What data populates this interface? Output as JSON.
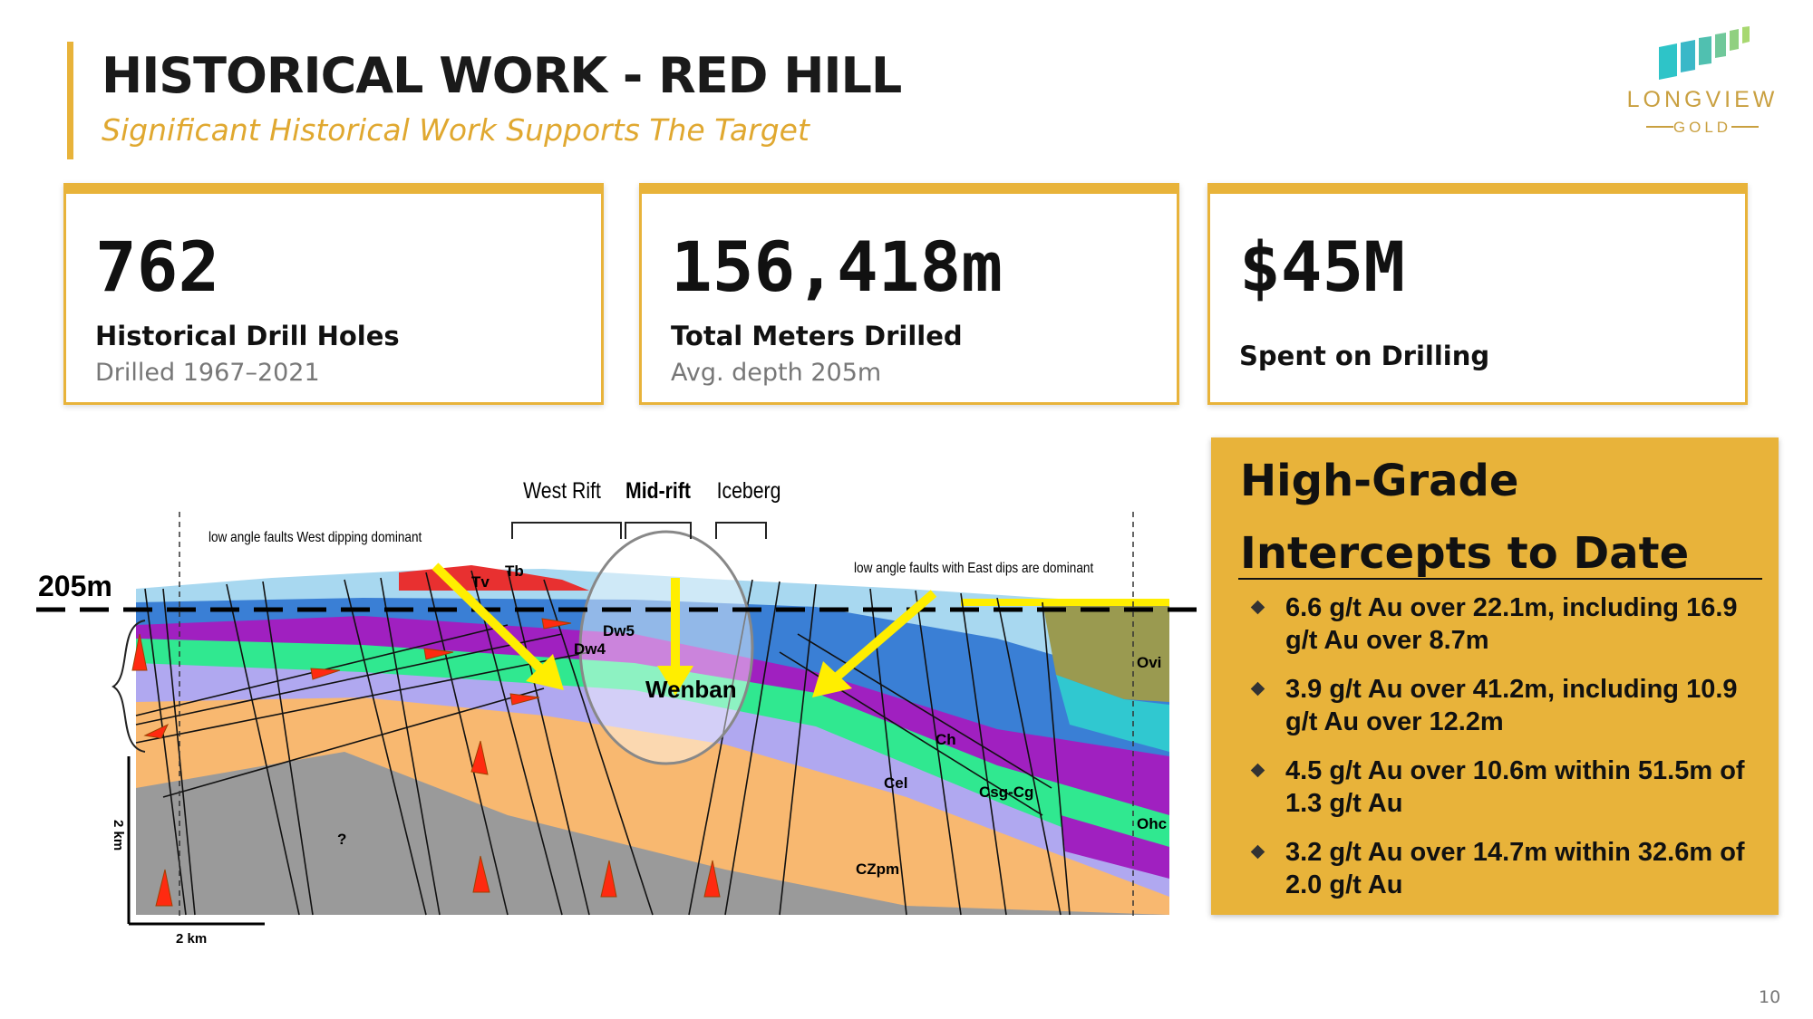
{
  "header": {
    "title": "HISTORICAL WORK - RED HILL",
    "subtitle": "Significant Historical Work Supports The Target"
  },
  "logo": {
    "name": "LONGVIEW",
    "tagline": "GOLD"
  },
  "stats": [
    {
      "value": "762",
      "label": "Historical Drill Holes",
      "note": "Drilled 1967–2021"
    },
    {
      "value": "156,418m",
      "label": "Total Meters Drilled",
      "note": "Avg. depth 205m"
    },
    {
      "value": "$45M",
      "label": "Spent on Drilling"
    }
  ],
  "cross_section": {
    "depth_label": "205m",
    "zones": [
      "West Rift",
      "Mid-rift",
      "Iceberg"
    ],
    "notes": [
      "low angle faults West dipping dominant",
      "low angle faults with East dips are dominant"
    ],
    "units": [
      "Tv",
      "Tb",
      "Dw5",
      "Dw4",
      "Wenban",
      "Ovi",
      "Ch",
      "Cel",
      "Csg-Cg",
      "Ohc",
      "?",
      "CZpm"
    ],
    "scale": {
      "vertical": "2 km",
      "horizontal": "2 km"
    }
  },
  "intercepts": {
    "title_lines": [
      "High-Grade",
      "Intercepts to Date"
    ],
    "items": [
      "6.6 g/t Au over 22.1m, including 16.9 g/t Au over 8.7m",
      "3.9 g/t Au over 41.2m, including 10.9 g/t Au over 12.2m",
      "4.5 g/t Au over 10.6m within 51.5m of 1.3 g/t Au",
      "3.2 g/t Au over 14.7m within 32.6m of 2.0 g/t Au"
    ]
  },
  "page_number": "10"
}
